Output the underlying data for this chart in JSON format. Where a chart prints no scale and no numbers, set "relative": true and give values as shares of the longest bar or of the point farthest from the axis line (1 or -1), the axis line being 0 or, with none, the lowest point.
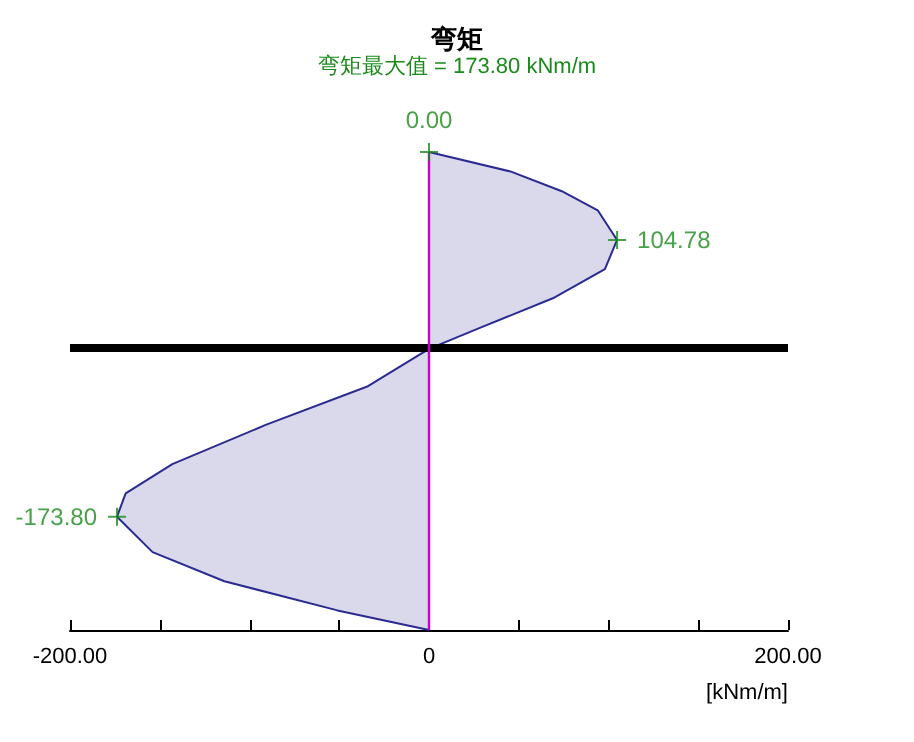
{
  "chart_data": {
    "type": "area",
    "title": "弯矩",
    "subtitle": "弯矩最大值 = 173.80 kNm/m",
    "xlabel": "[kNm/m]",
    "relative": true,
    "series": [
      {
        "color": "#2a2a90",
        "x": [
          0,
          45.7,
          74,
          94,
          104.78,
          98,
          69,
          29,
          0,
          -34,
          -91,
          -143,
          -169,
          -173.8,
          -154,
          -114,
          -51,
          0
        ],
        "values": [
          1,
          0.959,
          0.918,
          0.878,
          0.816,
          0.755,
          0.694,
          0.633,
          0.588,
          0.51,
          0.429,
          0.347,
          0.286,
          0.237,
          0.163,
          0.102,
          0.041,
          0
        ]
      }
    ],
    "xlim": [
      -200,
      200
    ],
    "xticks": [
      {
        "value": -200,
        "label": "-200.00"
      },
      {
        "value": -150,
        "label": null
      },
      {
        "value": -100,
        "label": null
      },
      {
        "value": -50,
        "label": null
      },
      0,
      {
        "value": 50,
        "label": null
      },
      {
        "value": 100,
        "label": null
      },
      {
        "value": 150,
        "label": null
      },
      {
        "value": 200,
        "label": "200.00"
      }
    ],
    "ref_lines": [
      {
        "axis": "y",
        "value": 0.588,
        "color": "#000000"
      },
      {
        "axis": "x",
        "value": 0,
        "color": "#cc00cc"
      }
    ],
    "annotations": [
      {
        "text": "0.00",
        "x": 0,
        "y": 1
      },
      {
        "text": "104.78",
        "x": 104.78,
        "y": 0.816
      },
      {
        "text": "-173.80",
        "x": -173.8,
        "y": 0.237
      }
    ],
    "grid": false
  }
}
